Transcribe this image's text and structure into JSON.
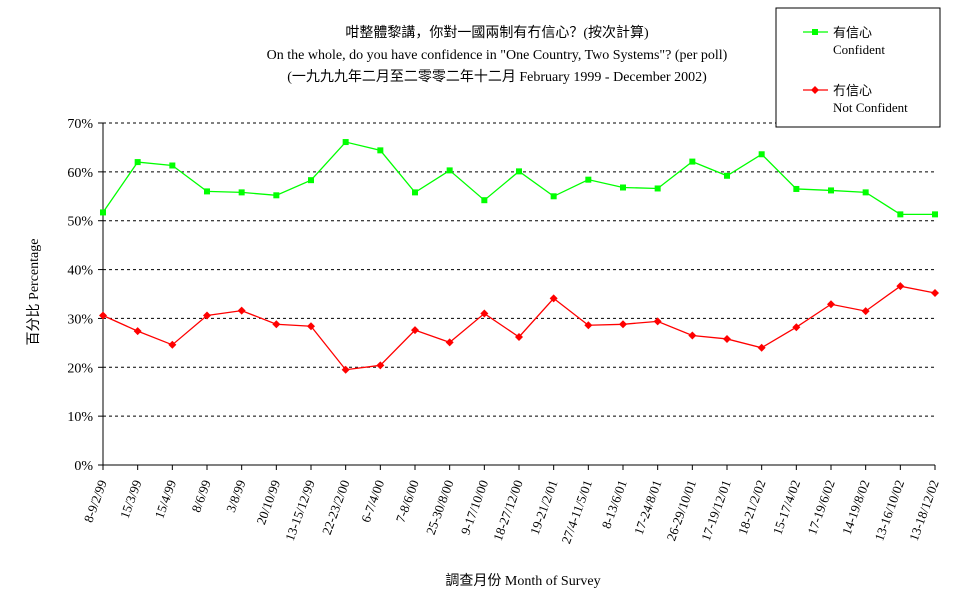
{
  "chart_data": {
    "type": "line",
    "title": [
      "咁整體黎講，你對一國兩制有冇信心？(按次計算)",
      "On the whole, do you have confidence in \"One Country, Two Systems\"? (per poll)",
      "(一九九九年二月至二零零二年十二月 February 1999 - December 2002)"
    ],
    "xlabel": "調查月份 Month of Survey",
    "ylabel": "百分比 Percentage",
    "ylim": [
      0,
      70
    ],
    "yticks": [
      "0%",
      "10%",
      "20%",
      "30%",
      "40%",
      "50%",
      "60%",
      "70%"
    ],
    "grid": "horizontal-dashed",
    "legend_position": "top-right",
    "categories": [
      "8-9/2/99",
      "15/3/99",
      "15/4/99",
      "8/6/99",
      "3/8/99",
      "20/10/99",
      "13-15/12/99",
      "22-23/2/00",
      "6-7/4/00",
      "7-8/6/00",
      "25-30/8/00",
      "9-17/10/00",
      "18-27/12/00",
      "19-21/2/01",
      "27/4-11/5/01",
      "8-13/6/01",
      "17-24/8/01",
      "26-29/10/01",
      "17-19/12/01",
      "18-21/2/02",
      "15-17/4/02",
      "17-19/6/02",
      "14-19/8/02",
      "13-16/10/02",
      "13-18/12/02"
    ],
    "series": [
      {
        "name": "有信心",
        "name_en": "Confident",
        "color": "#00ff00",
        "marker": "square",
        "values": [
          51.7,
          62.0,
          61.3,
          56.0,
          55.8,
          55.2,
          58.3,
          66.1,
          64.4,
          55.8,
          60.3,
          54.2,
          60.1,
          55.0,
          58.4,
          56.8,
          56.6,
          62.1,
          59.2,
          63.6,
          56.5,
          56.2,
          55.8,
          51.3,
          51.3
        ]
      },
      {
        "name": "冇信心",
        "name_en": "Not Confident",
        "color": "#ff0000",
        "marker": "diamond",
        "values": [
          30.6,
          27.4,
          24.6,
          30.6,
          31.6,
          28.8,
          28.4,
          19.5,
          20.4,
          27.6,
          25.1,
          31.0,
          26.2,
          34.1,
          28.6,
          28.8,
          29.4,
          26.5,
          25.8,
          24.0,
          28.2,
          32.9,
          31.5,
          36.6,
          35.2
        ]
      }
    ]
  }
}
